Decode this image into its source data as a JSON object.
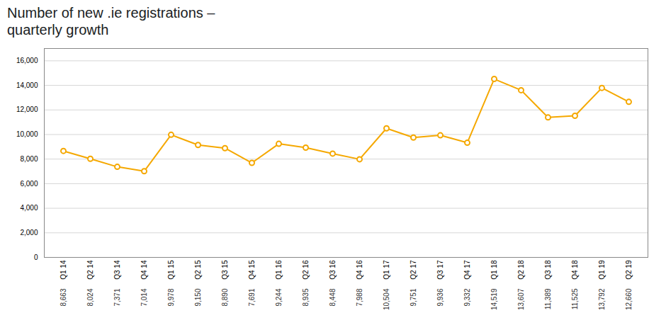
{
  "chart_data": {
    "type": "line",
    "title": "Number of new .ie registrations –",
    "subtitle": "quarterly growth",
    "categories": [
      "Q1 14",
      "Q2 14",
      "Q3 14",
      "Q4 14",
      "Q1 15",
      "Q2 15",
      "Q3 15",
      "Q4 15",
      "Q1 16",
      "Q2 16",
      "Q3 16",
      "Q4 16",
      "Q1 17",
      "Q2 17",
      "Q3 17",
      "Q4 17",
      "Q1 18",
      "Q2 18",
      "Q3 18",
      "Q4 18",
      "Q1 19",
      "Q2 19"
    ],
    "values": [
      8663,
      8024,
      7371,
      7014,
      9978,
      9150,
      8890,
      7691,
      9244,
      8935,
      8448,
      7988,
      10504,
      9751,
      9936,
      9332,
      14519,
      13607,
      11389,
      11525,
      13792,
      12660
    ],
    "value_labels": [
      "8,663",
      "8,024",
      "7,371",
      "7,014",
      "9,978",
      "9,150",
      "8,890",
      "7,691",
      "9,244",
      "8,935",
      "8,448",
      "7,988",
      "10,504",
      "9,751",
      "9,936",
      "9,332",
      "14,519",
      "13,607",
      "11,389",
      "11,525",
      "13,792",
      "12,660"
    ],
    "color": "#f5a800",
    "marker": "circle",
    "ylim": [
      0,
      17000
    ],
    "yticks": [
      0,
      {
        "value": 2000,
        "label": "2,000"
      },
      {
        "value": 4000,
        "label": "4,000"
      },
      {
        "value": 6000,
        "label": "6,000"
      },
      {
        "value": 8000,
        "label": "8,000"
      },
      {
        "value": 10000,
        "label": "10,000"
      },
      {
        "value": 12000,
        "label": "12,000"
      },
      {
        "value": 14000,
        "label": "14,000"
      },
      {
        "value": 16000,
        "label": "16,000"
      }
    ],
    "grid": true,
    "data_labels": true
  }
}
